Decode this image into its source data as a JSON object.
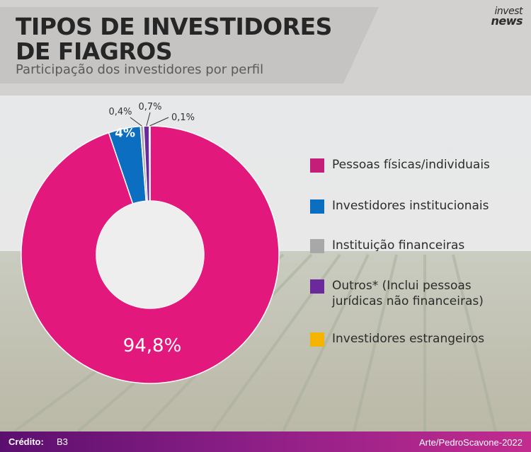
{
  "header": {
    "title_line1": "TIPOS DE INVESTIDORES",
    "title_line2": "DE FIAGROS",
    "subtitle": "Participação dos investidores por perfil"
  },
  "logo": {
    "line1": "invest",
    "line2": "news"
  },
  "chart_data": {
    "type": "pie",
    "donut": true,
    "categories": [
      "Pessoas físicas/individuais",
      "Investidores institucionais",
      "Instituição financeiras",
      "Outros* (Inclui pessoas jurídicas não financeiras)",
      "Investidores estrangeiros"
    ],
    "values": [
      94.8,
      4.0,
      0.4,
      0.7,
      0.1
    ],
    "value_labels": [
      "94,8%",
      "4%",
      "0,4%",
      "0,7%",
      "0,1%"
    ],
    "colors": [
      "#e3187d",
      "#0b6ec0",
      "#a8a8a8",
      "#6a2a9c",
      "#f4b400"
    ],
    "legend_position": "right"
  },
  "legend": {
    "items": [
      {
        "label": "Pessoas físicas/individuais",
        "color": "#c41e78"
      },
      {
        "label": "Investidores institucionais",
        "color": "#0b6ec0"
      },
      {
        "label": "Instituição financeiras",
        "color": "#a8a8a8"
      },
      {
        "label": "Outros* (Inclui pessoas jurídicas não financeiras)",
        "color": "#6a2a9c"
      },
      {
        "label": "Investidores estrangeiros",
        "color": "#f4b400"
      }
    ]
  },
  "footer": {
    "credit_label": "Crédito:",
    "credit_value": "B3",
    "art": "Arte/PedroScavone-2022"
  }
}
